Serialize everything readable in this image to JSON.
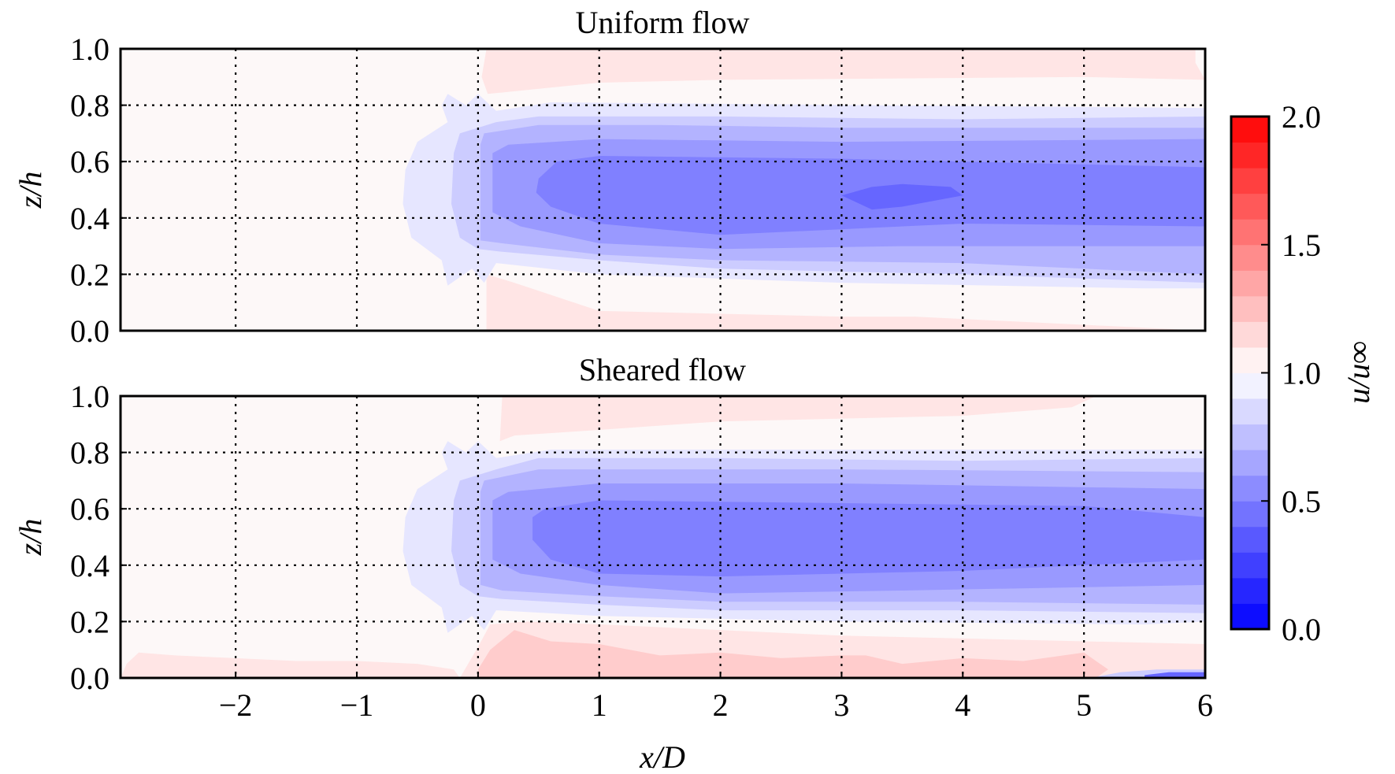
{
  "chart_data": [
    {
      "type": "heatmap",
      "title": "Uniform flow",
      "xlabel": "",
      "ylabel": "z/h",
      "xlim": [
        -2.95,
        6
      ],
      "ylim": [
        0,
        1
      ],
      "grid": true,
      "xticks": [
        -2,
        -1,
        0,
        1,
        2,
        3,
        4,
        5,
        6
      ],
      "yticks": [
        0.0,
        0.2,
        0.4,
        0.6,
        0.8,
        1.0
      ],
      "xtick_labels_shown": false,
      "ytick_labels": [
        "0.0",
        "0.2",
        "0.4",
        "0.6",
        "0.8",
        "1.0"
      ],
      "field": "u/u∞",
      "regions": [
        {
          "level": 1.1,
          "polygon": [
            [
              0.07,
              1.0
            ],
            [
              5.92,
              1.0
            ],
            [
              5.92,
              0.95
            ],
            [
              6.0,
              0.89
            ],
            [
              5.0,
              0.9
            ],
            [
              2.0,
              0.89
            ],
            [
              1.0,
              0.88
            ],
            [
              0.08,
              0.84
            ],
            [
              0.03,
              0.9
            ]
          ]
        },
        {
          "level": 1.1,
          "polygon": [
            [
              0.07,
              0.0
            ],
            [
              6.0,
              0.0
            ],
            [
              6.0,
              0.0
            ],
            [
              3.6,
              0.05
            ],
            [
              3.0,
              0.05
            ],
            [
              1.0,
              0.07
            ],
            [
              0.3,
              0.17
            ],
            [
              0.07,
              0.2
            ]
          ]
        },
        {
          "level": 0.9,
          "polygon": [
            [
              -0.6,
              0.57
            ],
            [
              -0.5,
              0.67
            ],
            [
              -0.25,
              0.74
            ],
            [
              -0.3,
              0.8
            ],
            [
              -0.25,
              0.84
            ],
            [
              -0.1,
              0.8
            ],
            [
              0.0,
              0.84
            ],
            [
              0.15,
              0.78
            ],
            [
              0.6,
              0.81
            ],
            [
              6.0,
              0.79
            ],
            [
              6.0,
              0.15
            ],
            [
              5.5,
              0.15
            ],
            [
              3.0,
              0.17
            ],
            [
              1.0,
              0.2
            ],
            [
              0.15,
              0.24
            ],
            [
              0.05,
              0.17
            ],
            [
              -0.05,
              0.22
            ],
            [
              -0.25,
              0.16
            ],
            [
              -0.3,
              0.25
            ],
            [
              -0.55,
              0.33
            ],
            [
              -0.62,
              0.45
            ]
          ]
        },
        {
          "level": 0.8,
          "polygon": [
            [
              -0.2,
              0.63
            ],
            [
              -0.15,
              0.7
            ],
            [
              0.0,
              0.72
            ],
            [
              0.15,
              0.74
            ],
            [
              0.5,
              0.76
            ],
            [
              2.0,
              0.76
            ],
            [
              4.0,
              0.75
            ],
            [
              6.0,
              0.76
            ],
            [
              6.0,
              0.17
            ],
            [
              4.0,
              0.2
            ],
            [
              2.0,
              0.22
            ],
            [
              1.0,
              0.25
            ],
            [
              0.2,
              0.28
            ],
            [
              0.0,
              0.29
            ],
            [
              -0.15,
              0.33
            ],
            [
              -0.22,
              0.45
            ]
          ]
        },
        {
          "level": 0.7,
          "polygon": [
            [
              0.02,
              0.66
            ],
            [
              0.05,
              0.7
            ],
            [
              0.5,
              0.73
            ],
            [
              1.5,
              0.73
            ],
            [
              3.0,
              0.72
            ],
            [
              6.0,
              0.72
            ],
            [
              6.0,
              0.2
            ],
            [
              4.0,
              0.24
            ],
            [
              2.0,
              0.25
            ],
            [
              1.0,
              0.27
            ],
            [
              0.2,
              0.31
            ],
            [
              0.02,
              0.32
            ]
          ]
        },
        {
          "level": 0.6,
          "polygon": [
            [
              0.12,
              0.63
            ],
            [
              0.25,
              0.66
            ],
            [
              1.0,
              0.68
            ],
            [
              3.0,
              0.67
            ],
            [
              6.0,
              0.68
            ],
            [
              6.0,
              0.3
            ],
            [
              3.5,
              0.3
            ],
            [
              2.0,
              0.29
            ],
            [
              1.0,
              0.31
            ],
            [
              0.35,
              0.37
            ],
            [
              0.12,
              0.42
            ]
          ]
        },
        {
          "level": 0.5,
          "polygon": [
            [
              0.5,
              0.54
            ],
            [
              0.65,
              0.6
            ],
            [
              1.0,
              0.62
            ],
            [
              3.0,
              0.61
            ],
            [
              5.0,
              0.59
            ],
            [
              6.0,
              0.58
            ],
            [
              6.0,
              0.37
            ],
            [
              4.0,
              0.38
            ],
            [
              2.0,
              0.34
            ],
            [
              1.0,
              0.38
            ],
            [
              0.6,
              0.44
            ],
            [
              0.48,
              0.49
            ]
          ]
        },
        {
          "level": 0.4,
          "polygon": [
            [
              3.0,
              0.48
            ],
            [
              3.25,
              0.51
            ],
            [
              3.5,
              0.52
            ],
            [
              3.9,
              0.51
            ],
            [
              4.0,
              0.48
            ],
            [
              3.5,
              0.44
            ],
            [
              3.25,
              0.43
            ]
          ]
        }
      ]
    },
    {
      "type": "heatmap",
      "title": "Sheared flow",
      "xlabel": "x/D",
      "ylabel": "z/h",
      "xlim": [
        -2.95,
        6
      ],
      "ylim": [
        0,
        1
      ],
      "grid": true,
      "xticks": [
        -2,
        -1,
        0,
        1,
        2,
        3,
        4,
        5,
        6
      ],
      "xtick_labels": [
        "−2",
        "−1",
        "0",
        "1",
        "2",
        "3",
        "4",
        "5",
        "6"
      ],
      "yticks": [
        0.0,
        0.2,
        0.4,
        0.6,
        0.8,
        1.0
      ],
      "ytick_labels": [
        "0.0",
        "0.2",
        "0.4",
        "0.6",
        "0.8",
        "1.0"
      ],
      "field": "u/u∞",
      "regions": [
        {
          "level": 1.1,
          "polygon": [
            [
              0.2,
              1.0
            ],
            [
              5.1,
              1.0
            ],
            [
              4.9,
              0.96
            ],
            [
              4.0,
              0.93
            ],
            [
              2.0,
              0.91
            ],
            [
              1.0,
              0.88
            ],
            [
              0.3,
              0.86
            ],
            [
              0.18,
              0.84
            ]
          ]
        },
        {
          "level": 1.1,
          "polygon": [
            [
              -2.95,
              0.0
            ],
            [
              -2.9,
              0.05
            ],
            [
              -2.8,
              0.09
            ],
            [
              -2.5,
              0.08
            ],
            [
              -2.0,
              0.07
            ],
            [
              -1.5,
              0.06
            ],
            [
              -1.0,
              0.06
            ],
            [
              -0.5,
              0.05
            ],
            [
              -0.2,
              0.03
            ],
            [
              -0.15,
              0.0
            ]
          ]
        },
        {
          "level": 1.1,
          "polygon": [
            [
              -0.15,
              0.0
            ],
            [
              0.0,
              0.11
            ],
            [
              0.1,
              0.19
            ],
            [
              0.4,
              0.2
            ],
            [
              1.0,
              0.19
            ],
            [
              3.0,
              0.15
            ],
            [
              6.0,
              0.12
            ],
            [
              6.0,
              0.0
            ]
          ]
        },
        {
          "level": 1.2,
          "polygon": [
            [
              0.0,
              0.03
            ],
            [
              0.1,
              0.1
            ],
            [
              0.3,
              0.17
            ],
            [
              0.6,
              0.13
            ],
            [
              1.0,
              0.12
            ],
            [
              1.5,
              0.08
            ],
            [
              2.0,
              0.09
            ],
            [
              2.5,
              0.07
            ],
            [
              3.0,
              0.08
            ],
            [
              3.2,
              0.08
            ],
            [
              3.5,
              0.05
            ],
            [
              4.0,
              0.07
            ],
            [
              4.5,
              0.06
            ],
            [
              5.0,
              0.09
            ],
            [
              5.2,
              0.03
            ],
            [
              5.1,
              0.0
            ],
            [
              0.0,
              0.0
            ]
          ]
        },
        {
          "level": 0.9,
          "polygon": [
            [
              -0.6,
              0.57
            ],
            [
              -0.5,
              0.67
            ],
            [
              -0.25,
              0.74
            ],
            [
              -0.3,
              0.8
            ],
            [
              -0.25,
              0.84
            ],
            [
              -0.1,
              0.8
            ],
            [
              0.0,
              0.84
            ],
            [
              0.15,
              0.78
            ],
            [
              0.6,
              0.81
            ],
            [
              6.0,
              0.81
            ],
            [
              6.0,
              0.2
            ],
            [
              5.5,
              0.19
            ],
            [
              3.0,
              0.2
            ],
            [
              1.0,
              0.22
            ],
            [
              0.15,
              0.24
            ],
            [
              0.05,
              0.17
            ],
            [
              -0.05,
              0.22
            ],
            [
              -0.25,
              0.16
            ],
            [
              -0.3,
              0.25
            ],
            [
              -0.55,
              0.33
            ],
            [
              -0.62,
              0.45
            ]
          ]
        },
        {
          "level": 0.8,
          "polygon": [
            [
              -0.2,
              0.63
            ],
            [
              -0.15,
              0.7
            ],
            [
              0.0,
              0.72
            ],
            [
              0.15,
              0.74
            ],
            [
              0.5,
              0.78
            ],
            [
              2.0,
              0.78
            ],
            [
              4.0,
              0.77
            ],
            [
              6.0,
              0.78
            ],
            [
              6.0,
              0.23
            ],
            [
              4.0,
              0.24
            ],
            [
              2.0,
              0.24
            ],
            [
              1.0,
              0.26
            ],
            [
              0.2,
              0.28
            ],
            [
              0.0,
              0.29
            ],
            [
              -0.15,
              0.33
            ],
            [
              -0.22,
              0.45
            ]
          ]
        },
        {
          "level": 0.7,
          "polygon": [
            [
              0.02,
              0.66
            ],
            [
              0.05,
              0.7
            ],
            [
              0.5,
              0.74
            ],
            [
              1.5,
              0.74
            ],
            [
              3.0,
              0.74
            ],
            [
              6.0,
              0.73
            ],
            [
              6.0,
              0.26
            ],
            [
              4.0,
              0.27
            ],
            [
              2.0,
              0.27
            ],
            [
              1.0,
              0.29
            ],
            [
              0.2,
              0.31
            ],
            [
              0.02,
              0.33
            ]
          ]
        },
        {
          "level": 0.6,
          "polygon": [
            [
              0.12,
              0.63
            ],
            [
              0.25,
              0.66
            ],
            [
              1.0,
              0.69
            ],
            [
              3.0,
              0.69
            ],
            [
              6.0,
              0.67
            ],
            [
              6.0,
              0.33
            ],
            [
              3.5,
              0.31
            ],
            [
              2.0,
              0.3
            ],
            [
              1.0,
              0.33
            ],
            [
              0.35,
              0.37
            ],
            [
              0.12,
              0.42
            ]
          ]
        },
        {
          "level": 0.5,
          "polygon": [
            [
              0.45,
              0.57
            ],
            [
              0.55,
              0.6
            ],
            [
              1.0,
              0.63
            ],
            [
              3.0,
              0.62
            ],
            [
              5.0,
              0.61
            ],
            [
              6.0,
              0.57
            ],
            [
              6.0,
              0.42
            ],
            [
              4.0,
              0.38
            ],
            [
              2.0,
              0.36
            ],
            [
              1.0,
              0.37
            ],
            [
              0.6,
              0.42
            ],
            [
              0.45,
              0.49
            ]
          ]
        },
        {
          "level": 0.8,
          "polygon": [
            [
              5.05,
              0.0
            ],
            [
              5.3,
              0.02
            ],
            [
              5.6,
              0.03
            ],
            [
              6.0,
              0.03
            ],
            [
              6.0,
              0.0
            ]
          ]
        },
        {
          "level": 0.4,
          "polygon": [
            [
              5.5,
              0.01
            ],
            [
              5.7,
              0.02
            ],
            [
              6.0,
              0.02
            ],
            [
              6.0,
              0.0
            ],
            [
              5.5,
              0.0
            ]
          ]
        }
      ]
    }
  ],
  "colorbar": {
    "label": "u/u∞",
    "range": [
      0.0,
      2.0
    ],
    "tick_values": [
      0.0,
      0.5,
      1.0,
      1.5,
      2.0
    ],
    "tick_labels": [
      "0.0",
      "0.5",
      "1.0",
      "1.5",
      "2.0"
    ],
    "colormap": "bwr",
    "levels": 20
  }
}
